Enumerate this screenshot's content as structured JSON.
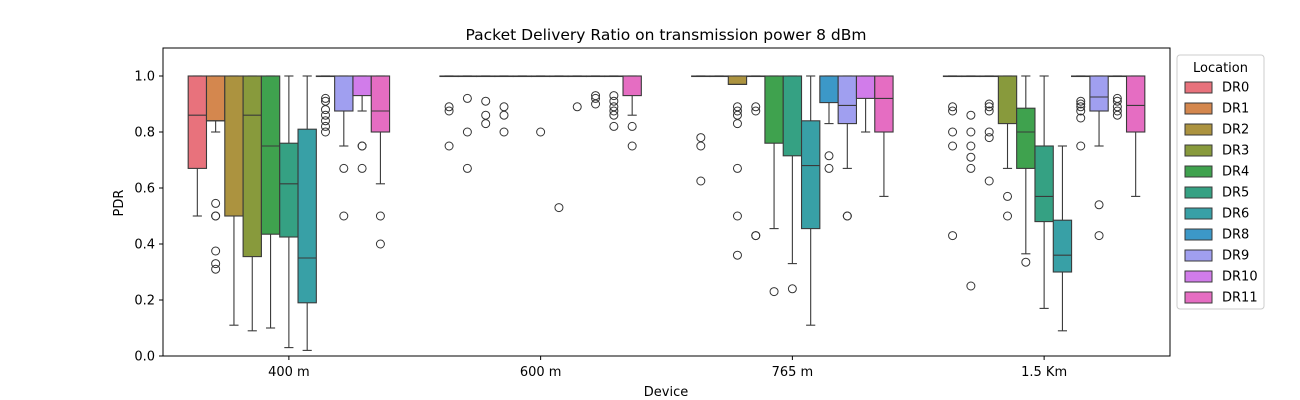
{
  "chart_data": {
    "type": "box",
    "title": "Packet Delivery Ratio on transmission power 8 dBm",
    "xlabel": "Device",
    "ylabel": "PDR",
    "ylim": [
      0,
      1.1
    ],
    "yticks": [
      "0.0",
      "0.2",
      "0.4",
      "0.6",
      "0.8",
      "1.0"
    ],
    "categories": [
      "400 m",
      "600 m",
      "765 m",
      "1.5 Km"
    ],
    "legend": {
      "title": "Location",
      "placement": "outside right",
      "entries": [
        "DR0",
        "DR1",
        "DR2",
        "DR3",
        "DR4",
        "DR5",
        "DR6",
        "DR8",
        "DR9",
        "DR10",
        "DR11"
      ]
    },
    "colors": {
      "DR0": "#e8727c",
      "DR1": "#d4874e",
      "DR2": "#ac933f",
      "DR3": "#889a3c",
      "DR4": "#3fa24e",
      "DR5": "#35a183",
      "DR6": "#38a0a6",
      "DR8": "#3c98c8",
      "DR9": "#a09ff0",
      "DR10": "#d17cea",
      "DR11": "#e56dc2"
    },
    "series": [
      {
        "name": "DR0",
        "boxes": [
          {
            "q1": 0.67,
            "med": 0.86,
            "q3": 1.0,
            "wlo": 0.5,
            "whi": 1.0,
            "fliers": []
          },
          {
            "q1": 1.0,
            "med": 1.0,
            "q3": 1.0,
            "wlo": 1.0,
            "whi": 1.0,
            "fliers": [
              0.75,
              0.875,
              0.89
            ]
          },
          {
            "q1": 1.0,
            "med": 1.0,
            "q3": 1.0,
            "wlo": 1.0,
            "whi": 1.0,
            "fliers": [
              0.625,
              0.75,
              0.78
            ]
          },
          {
            "q1": 1.0,
            "med": 1.0,
            "q3": 1.0,
            "wlo": 1.0,
            "whi": 1.0,
            "fliers": [
              0.43,
              0.75,
              0.8,
              0.875,
              0.89
            ]
          }
        ]
      },
      {
        "name": "DR1",
        "boxes": [
          {
            "q1": 0.84,
            "med": 0.84,
            "q3": 1.0,
            "wlo": 0.8,
            "whi": 1.0,
            "fliers": [
              0.31,
              0.33,
              0.375,
              0.5,
              0.5,
              0.545
            ]
          },
          {
            "q1": 1.0,
            "med": 1.0,
            "q3": 1.0,
            "wlo": 1.0,
            "whi": 1.0,
            "fliers": [
              0.67,
              0.8,
              0.92
            ]
          },
          {
            "q1": 1.0,
            "med": 1.0,
            "q3": 1.0,
            "wlo": 1.0,
            "whi": 1.0,
            "fliers": []
          },
          {
            "q1": 1.0,
            "med": 1.0,
            "q3": 1.0,
            "wlo": 1.0,
            "whi": 1.0,
            "fliers": [
              0.25,
              0.67,
              0.71,
              0.75,
              0.8,
              0.86
            ]
          }
        ]
      },
      {
        "name": "DR2",
        "boxes": [
          {
            "q1": 0.5,
            "med": 1.0,
            "q3": 1.0,
            "wlo": 0.11,
            "whi": 1.0,
            "fliers": []
          },
          {
            "q1": 1.0,
            "med": 1.0,
            "q3": 1.0,
            "wlo": 1.0,
            "whi": 1.0,
            "fliers": [
              0.83,
              0.86,
              0.91
            ]
          },
          {
            "q1": 0.97,
            "med": 0.97,
            "q3": 1.0,
            "wlo": 0.97,
            "whi": 1.0,
            "fliers": [
              0.36,
              0.5,
              0.67,
              0.83,
              0.86,
              0.875,
              0.89
            ]
          },
          {
            "q1": 1.0,
            "med": 1.0,
            "q3": 1.0,
            "wlo": 1.0,
            "whi": 1.0,
            "fliers": [
              0.625,
              0.78,
              0.8,
              0.875,
              0.89,
              0.9
            ]
          }
        ]
      },
      {
        "name": "DR3",
        "boxes": [
          {
            "q1": 0.355,
            "med": 0.86,
            "q3": 1.0,
            "wlo": 0.09,
            "whi": 1.0,
            "fliers": []
          },
          {
            "q1": 1.0,
            "med": 1.0,
            "q3": 1.0,
            "wlo": 1.0,
            "whi": 1.0,
            "fliers": [
              0.8,
              0.86,
              0.89
            ]
          },
          {
            "q1": 1.0,
            "med": 1.0,
            "q3": 1.0,
            "wlo": 1.0,
            "whi": 1.0,
            "fliers": [
              0.43,
              0.43,
              0.875,
              0.89
            ]
          },
          {
            "q1": 0.83,
            "med": 1.0,
            "q3": 1.0,
            "wlo": 0.67,
            "whi": 1.0,
            "fliers": [
              0.5,
              0.57
            ]
          }
        ]
      },
      {
        "name": "DR4",
        "boxes": [
          {
            "q1": 0.435,
            "med": 0.75,
            "q3": 1.0,
            "wlo": 0.1,
            "whi": 1.0,
            "fliers": []
          },
          {
            "q1": 1.0,
            "med": 1.0,
            "q3": 1.0,
            "wlo": 1.0,
            "whi": 1.0,
            "fliers": []
          },
          {
            "q1": 0.76,
            "med": 1.0,
            "q3": 1.0,
            "wlo": 0.455,
            "whi": 1.0,
            "fliers": [
              0.23
            ]
          },
          {
            "q1": 0.67,
            "med": 0.8,
            "q3": 0.885,
            "wlo": 0.365,
            "whi": 1.0,
            "fliers": [
              0.335
            ]
          }
        ]
      },
      {
        "name": "DR5",
        "boxes": [
          {
            "q1": 0.425,
            "med": 0.615,
            "q3": 0.76,
            "wlo": 0.03,
            "whi": 1.0,
            "fliers": []
          },
          {
            "q1": 1.0,
            "med": 1.0,
            "q3": 1.0,
            "wlo": 1.0,
            "whi": 1.0,
            "fliers": [
              0.8
            ]
          },
          {
            "q1": 0.715,
            "med": 1.0,
            "q3": 1.0,
            "wlo": 0.33,
            "whi": 1.0,
            "fliers": [
              0.24
            ]
          },
          {
            "q1": 0.48,
            "med": 0.57,
            "q3": 0.75,
            "wlo": 0.17,
            "whi": 1.0,
            "fliers": []
          }
        ]
      },
      {
        "name": "DR6",
        "boxes": [
          {
            "q1": 0.19,
            "med": 0.35,
            "q3": 0.81,
            "wlo": 0.02,
            "whi": 1.0,
            "fliers": []
          },
          {
            "q1": 1.0,
            "med": 1.0,
            "q3": 1.0,
            "wlo": 1.0,
            "whi": 1.0,
            "fliers": [
              0.53
            ]
          },
          {
            "q1": 0.455,
            "med": 0.68,
            "q3": 0.84,
            "wlo": 0.11,
            "whi": 1.0,
            "fliers": []
          },
          {
            "q1": 0.3,
            "med": 0.36,
            "q3": 0.485,
            "wlo": 0.09,
            "whi": 0.75,
            "fliers": []
          }
        ]
      },
      {
        "name": "DR8",
        "boxes": [
          {
            "q1": 1.0,
            "med": 1.0,
            "q3": 1.0,
            "wlo": 1.0,
            "whi": 1.0,
            "fliers": [
              0.8,
              0.82,
              0.84,
              0.86,
              0.88,
              0.91,
              0.92
            ]
          },
          {
            "q1": 1.0,
            "med": 1.0,
            "q3": 1.0,
            "wlo": 1.0,
            "whi": 1.0,
            "fliers": [
              0.89
            ]
          },
          {
            "q1": 0.905,
            "med": 1.0,
            "q3": 1.0,
            "wlo": 0.83,
            "whi": 1.0,
            "fliers": [
              0.67,
              0.715
            ]
          },
          {
            "q1": 1.0,
            "med": 1.0,
            "q3": 1.0,
            "wlo": 1.0,
            "whi": 1.0,
            "fliers": [
              0.75,
              0.85,
              0.875,
              0.89,
              0.9,
              0.91
            ]
          }
        ]
      },
      {
        "name": "DR9",
        "boxes": [
          {
            "q1": 0.875,
            "med": 1.0,
            "q3": 1.0,
            "wlo": 0.75,
            "whi": 1.0,
            "fliers": [
              0.5,
              0.67
            ]
          },
          {
            "q1": 1.0,
            "med": 1.0,
            "q3": 1.0,
            "wlo": 1.0,
            "whi": 1.0,
            "fliers": [
              0.9,
              0.92,
              0.93
            ]
          },
          {
            "q1": 0.83,
            "med": 0.895,
            "q3": 1.0,
            "wlo": 0.67,
            "whi": 1.0,
            "fliers": [
              0.5,
              0.5
            ]
          },
          {
            "q1": 0.875,
            "med": 0.925,
            "q3": 1.0,
            "wlo": 0.75,
            "whi": 1.0,
            "fliers": [
              0.43,
              0.54
            ]
          }
        ]
      },
      {
        "name": "DR10",
        "boxes": [
          {
            "q1": 0.93,
            "med": 1.0,
            "q3": 1.0,
            "wlo": 0.875,
            "whi": 1.0,
            "fliers": [
              0.67,
              0.75,
              0.75
            ]
          },
          {
            "q1": 1.0,
            "med": 1.0,
            "q3": 1.0,
            "wlo": 1.0,
            "whi": 1.0,
            "fliers": [
              0.82,
              0.86,
              0.875,
              0.89,
              0.91,
              0.93
            ]
          },
          {
            "q1": 0.92,
            "med": 1.0,
            "q3": 1.0,
            "wlo": 0.8,
            "whi": 1.0,
            "fliers": []
          },
          {
            "q1": 1.0,
            "med": 1.0,
            "q3": 1.0,
            "wlo": 1.0,
            "whi": 1.0,
            "fliers": [
              0.86,
              0.875,
              0.89,
              0.91,
              0.92
            ]
          }
        ]
      },
      {
        "name": "DR11",
        "boxes": [
          {
            "q1": 0.8,
            "med": 0.875,
            "q3": 1.0,
            "wlo": 0.615,
            "whi": 1.0,
            "fliers": [
              0.4,
              0.5
            ]
          },
          {
            "q1": 0.93,
            "med": 1.0,
            "q3": 1.0,
            "wlo": 0.86,
            "whi": 1.0,
            "fliers": [
              0.75,
              0.82
            ]
          },
          {
            "q1": 0.8,
            "med": 0.92,
            "q3": 1.0,
            "wlo": 0.57,
            "whi": 1.0,
            "fliers": []
          },
          {
            "q1": 0.8,
            "med": 0.895,
            "q3": 1.0,
            "wlo": 0.57,
            "whi": 1.0,
            "fliers": []
          }
        ]
      }
    ]
  }
}
